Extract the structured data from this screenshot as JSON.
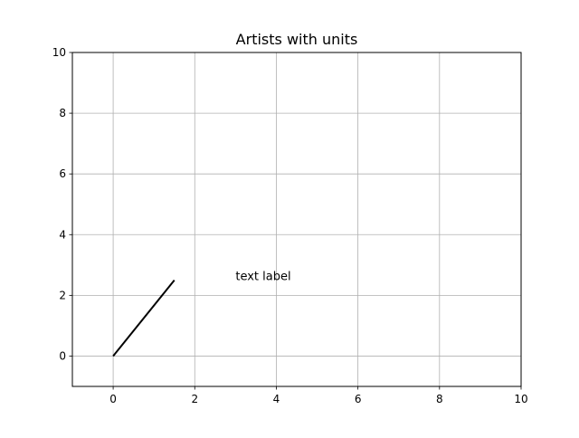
{
  "chart_data": {
    "type": "line",
    "title": "Artists with units",
    "xlabel": "",
    "ylabel": "",
    "xlim": [
      -1,
      10
    ],
    "ylim": [
      -1,
      10
    ],
    "grid": true,
    "xticks": [
      "0",
      "2",
      "4",
      "6",
      "8",
      "10"
    ],
    "yticks": [
      "0",
      "2",
      "4",
      "6",
      "8",
      "10"
    ],
    "series": [
      {
        "x": [
          0,
          1.5
        ],
        "y": [
          0,
          2.5
        ],
        "color": "#000000"
      }
    ],
    "annotations": [
      {
        "text": "text label",
        "x": 3,
        "y": 2.5
      }
    ]
  }
}
